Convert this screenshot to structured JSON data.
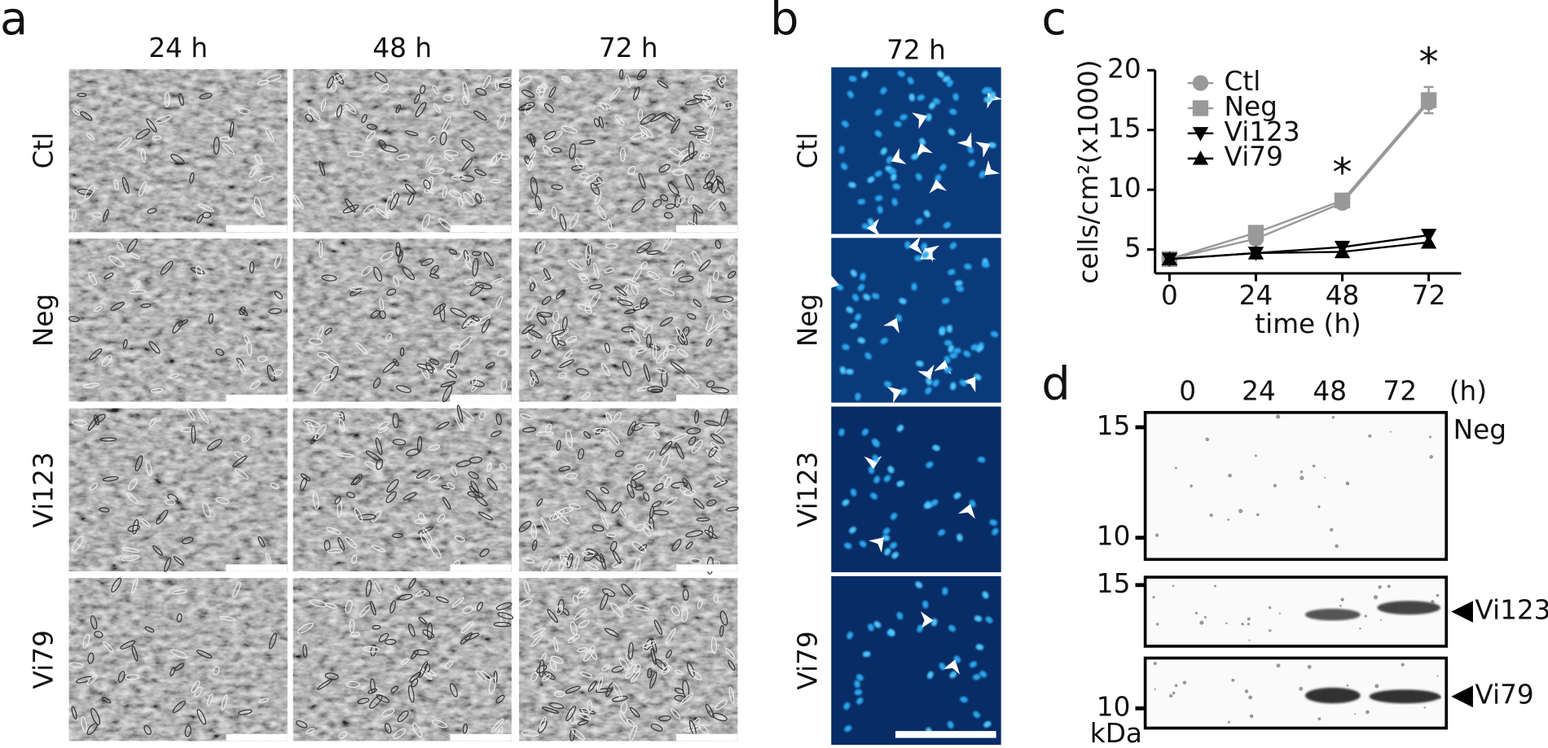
{
  "panel_labels": [
    "a",
    "b",
    "c",
    "d"
  ],
  "panel_a": {
    "columns": [
      "24 h",
      "48 h",
      "72 h"
    ],
    "rows": [
      "Ctl",
      "Neg",
      "Vi123",
      "Vi79"
    ]
  },
  "panel_b": {
    "column": "72 h",
    "rows": [
      "Ctl",
      "Neg",
      "Vi123",
      "Vi79"
    ]
  },
  "chart_data": {
    "type": "line",
    "x_label": "time (h)",
    "y_label": "cells/cm²(x1000)",
    "x": [
      0,
      24,
      48,
      72
    ],
    "series": [
      {
        "name": "Ctl",
        "color": "#999999",
        "marker": "circle",
        "values": [
          4.2,
          5.9,
          8.9,
          17.3
        ]
      },
      {
        "name": "Neg",
        "color": "#999999",
        "marker": "square",
        "values": [
          4.2,
          6.4,
          9.1,
          17.5
        ],
        "errors": [
          0,
          0,
          0.3,
          1.1
        ]
      },
      {
        "name": "Vi123",
        "color": "#000000",
        "marker": "triangle-down",
        "values": [
          4.2,
          4.7,
          5.2,
          6.2
        ]
      },
      {
        "name": "Vi79",
        "color": "#000000",
        "marker": "triangle-up",
        "values": [
          4.2,
          4.7,
          4.8,
          5.6
        ]
      }
    ],
    "xlim": [
      -4,
      81
    ],
    "ylim": [
      3,
      20
    ],
    "xticks": [
      0,
      24,
      48,
      72
    ],
    "yticks": [
      5,
      10,
      15,
      20
    ],
    "annotations": [
      {
        "text": "*",
        "x": 48
      },
      {
        "text": "*",
        "x": 72
      }
    ],
    "legend": "upper left"
  },
  "panel_d": {
    "lanes": [
      "0",
      "24",
      "48",
      "72"
    ],
    "lane_unit": "(h)",
    "blots": [
      {
        "label": "Neg",
        "markers": [
          "15",
          "10"
        ]
      },
      {
        "label": "Vi123",
        "markers": [
          "15"
        ]
      },
      {
        "label": "Vi79",
        "markers": [
          "10"
        ]
      }
    ],
    "marker_unit": "kDa"
  }
}
